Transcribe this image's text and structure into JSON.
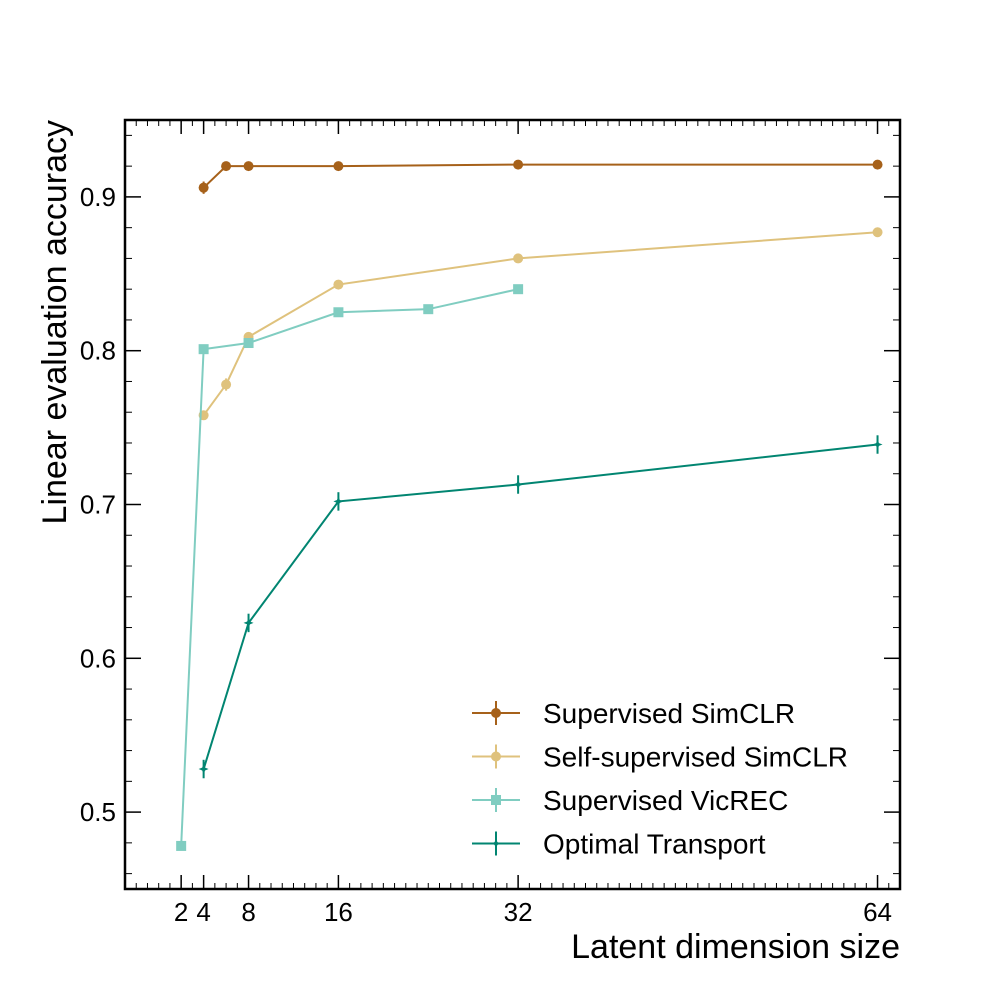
{
  "chart_data": {
    "type": "line",
    "title": "",
    "xlabel": "Latent dimension size",
    "ylabel": "Linear evaluation accuracy",
    "xlim": [
      -3,
      66
    ],
    "ylim": [
      0.45,
      0.95
    ],
    "xticks": [
      2,
      4,
      8,
      16,
      32,
      64
    ],
    "yticks": [
      0.5,
      0.6,
      0.7,
      0.8,
      0.9
    ],
    "ytick_labels": [
      "0.5",
      "0.6",
      "0.7",
      "0.8",
      "0.9"
    ],
    "legend_position": "bottom-right",
    "series": [
      {
        "name": "Supervised SimCLR",
        "color": "#a6611a",
        "marker": "circle",
        "points": [
          {
            "x": 4,
            "y": 0.906,
            "err": 0.004
          },
          {
            "x": 6,
            "y": 0.92,
            "err": 0.002
          },
          {
            "x": 8,
            "y": 0.92,
            "err": 0.002
          },
          {
            "x": 16,
            "y": 0.92,
            "err": 0.002
          },
          {
            "x": 32,
            "y": 0.921,
            "err": 0.002
          },
          {
            "x": 64,
            "y": 0.921,
            "err": 0.002
          }
        ]
      },
      {
        "name": "Self-supervised SimCLR",
        "color": "#dfc27d",
        "marker": "circle",
        "points": [
          {
            "x": 4,
            "y": 0.758,
            "err": 0.003
          },
          {
            "x": 6,
            "y": 0.778,
            "err": 0.004
          },
          {
            "x": 8,
            "y": 0.809,
            "err": 0.003
          },
          {
            "x": 16,
            "y": 0.843,
            "err": 0.002
          },
          {
            "x": 32,
            "y": 0.86,
            "err": 0.002
          },
          {
            "x": 64,
            "y": 0.877,
            "err": 0.002
          }
        ]
      },
      {
        "name": "Supervised VicREC",
        "color": "#80cdc1",
        "marker": "square",
        "points": [
          {
            "x": 2,
            "y": 0.478,
            "err": 0.002
          },
          {
            "x": 4,
            "y": 0.801,
            "err": 0.003
          },
          {
            "x": 8,
            "y": 0.805,
            "err": 0.002
          },
          {
            "x": 16,
            "y": 0.825,
            "err": 0.002
          },
          {
            "x": 24,
            "y": 0.827,
            "err": 0.002
          },
          {
            "x": 32,
            "y": 0.84,
            "err": 0.002
          }
        ]
      },
      {
        "name": "Optimal Transport",
        "color": "#018571",
        "marker": "star",
        "points": [
          {
            "x": 4,
            "y": 0.528,
            "err": 0.006
          },
          {
            "x": 8,
            "y": 0.623,
            "err": 0.006
          },
          {
            "x": 16,
            "y": 0.702,
            "err": 0.006
          },
          {
            "x": 32,
            "y": 0.713,
            "err": 0.006
          },
          {
            "x": 64,
            "y": 0.739,
            "err": 0.006
          }
        ]
      }
    ]
  }
}
